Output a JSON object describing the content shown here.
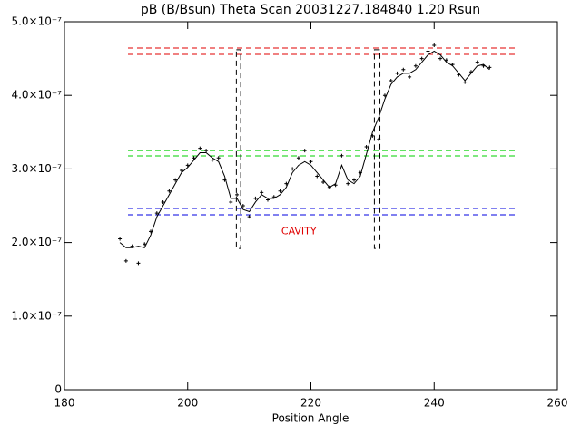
{
  "chart_data": {
    "type": "line",
    "title": "pB (B/Bsun) Theta Scan 20031227.184840 1.20 Rsun",
    "xlabel": "Position Angle",
    "xlim": [
      180,
      260
    ],
    "xticks": [
      180,
      200,
      220,
      240,
      260
    ],
    "ylim": [
      0,
      5e-07
    ],
    "yticks": [
      0,
      {
        "value": 1e-07,
        "label": "1.0×10⁻⁷"
      },
      {
        "value": 2e-07,
        "label": "2.0×10⁻⁷"
      },
      {
        "value": 3e-07,
        "label": "3.0×10⁻⁷"
      },
      {
        "value": 4e-07,
        "label": "4.0×10⁻⁷"
      },
      {
        "value": 5e-07,
        "label": "5.0×10⁻⁷"
      }
    ],
    "x": [
      189,
      190,
      191,
      192,
      193,
      194,
      195,
      196,
      197,
      198,
      199,
      200,
      201,
      202,
      203,
      204,
      205,
      206,
      207,
      208,
      209,
      210,
      211,
      212,
      213,
      214,
      215,
      216,
      217,
      218,
      219,
      220,
      221,
      222,
      223,
      224,
      225,
      226,
      227,
      228,
      229,
      230,
      231,
      232,
      233,
      234,
      235,
      236,
      237,
      238,
      239,
      240,
      241,
      242,
      243,
      244,
      245,
      246,
      247,
      248,
      249
    ],
    "series": [
      {
        "style": "line",
        "color": "#000000",
        "values": [
          2e-07,
          1.93e-07,
          1.93e-07,
          1.95e-07,
          1.93e-07,
          2.1e-07,
          2.35e-07,
          2.5e-07,
          2.65e-07,
          2.8e-07,
          2.95e-07,
          3.02e-07,
          3.12e-07,
          3.22e-07,
          3.22e-07,
          3.15e-07,
          3.1e-07,
          2.9e-07,
          2.6e-07,
          2.6e-07,
          2.45e-07,
          2.42e-07,
          2.55e-07,
          2.65e-07,
          2.6e-07,
          2.6e-07,
          2.65e-07,
          2.75e-07,
          2.95e-07,
          3.05e-07,
          3.1e-07,
          3.05e-07,
          2.95e-07,
          2.85e-07,
          2.75e-07,
          2.8e-07,
          3.05e-07,
          2.85e-07,
          2.8e-07,
          2.9e-07,
          3.2e-07,
          3.5e-07,
          3.7e-07,
          3.95e-07,
          4.15e-07,
          4.25e-07,
          4.3e-07,
          4.3e-07,
          4.35e-07,
          4.45e-07,
          4.55e-07,
          4.6e-07,
          4.55e-07,
          4.45e-07,
          4.4e-07,
          4.3e-07,
          4.2e-07,
          4.3e-07,
          4.4e-07,
          4.42e-07,
          4.35e-07
        ]
      },
      {
        "style": "points",
        "color": "#000000",
        "values": [
          2.05e-07,
          1.75e-07,
          1.95e-07,
          1.72e-07,
          1.98e-07,
          2.15e-07,
          2.4e-07,
          2.55e-07,
          2.7e-07,
          2.85e-07,
          2.98e-07,
          3.05e-07,
          3.15e-07,
          3.28e-07,
          3.25e-07,
          3.12e-07,
          3.15e-07,
          2.85e-07,
          2.55e-07,
          2.65e-07,
          2.5e-07,
          2.35e-07,
          2.6e-07,
          2.68e-07,
          2.58e-07,
          2.62e-07,
          2.7e-07,
          2.8e-07,
          3e-07,
          3.15e-07,
          3.25e-07,
          3.1e-07,
          2.9e-07,
          2.82e-07,
          2.75e-07,
          2.78e-07,
          3.18e-07,
          2.8e-07,
          2.85e-07,
          2.95e-07,
          3.3e-07,
          3.45e-07,
          3.4e-07,
          4e-07,
          4.2e-07,
          4.3e-07,
          4.35e-07,
          4.25e-07,
          4.4e-07,
          4.5e-07,
          4.6e-07,
          4.68e-07,
          4.5e-07,
          4.48e-07,
          4.42e-07,
          4.28e-07,
          4.18e-07,
          4.32e-07,
          4.45e-07,
          4.4e-07,
          4.38e-07
        ]
      }
    ],
    "hlines": [
      {
        "value": 4.643e-07,
        "color": "#e00000"
      },
      {
        "value": 4.557e-07,
        "color": "#e00000"
      },
      {
        "value": 3.25e-07,
        "color": "#00d000"
      },
      {
        "value": 3.177e-07,
        "color": "#00d000"
      },
      {
        "value": 2.463e-07,
        "color": "#0000e0"
      },
      {
        "value": 2.377e-07,
        "color": "#0000e0"
      }
    ],
    "boxes": [
      {
        "x": [
          207.9,
          208.6
        ],
        "y": [
          1.92e-07,
          4.62e-07
        ]
      },
      {
        "x": [
          230.3,
          231.2
        ],
        "y": [
          1.92e-07,
          4.62e-07
        ]
      }
    ],
    "annotation": {
      "text": "CAVITY",
      "x": 215.2,
      "y": 2.15e-07,
      "color": "#e00000"
    }
  }
}
